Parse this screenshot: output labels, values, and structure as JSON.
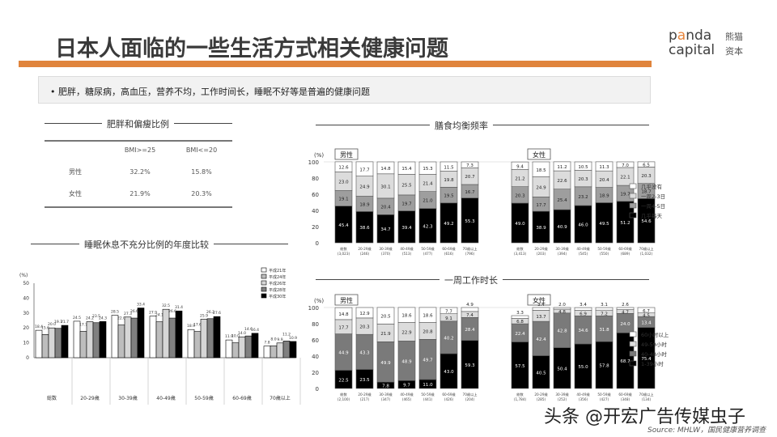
{
  "header": {
    "title": "日本人面临的一些生活方式相关健康问题",
    "logo_en_line1_pre": "p",
    "logo_en_line1_a": "a",
    "logo_en_line1_post": "nda",
    "logo_en_line2": "capital",
    "logo_cn_line1": "熊猫",
    "logo_cn_line2": "资本",
    "accent_color": "#e0843c"
  },
  "summary": {
    "bullet": "•  肥胖，糖尿病，高血压，营养不均，工作时间长，睡眠不好等是普遍的健康问题"
  },
  "obesity": {
    "title": "肥胖和偏瘦比例",
    "headers": [
      "",
      "BMI>=25",
      "BMI<=20"
    ],
    "rows": [
      {
        "label": "男性",
        "bmi25": "32.2%",
        "bmi20": "15.8%"
      },
      {
        "label": "女性",
        "bmi25": "21.9%",
        "bmi20": "20.3%"
      }
    ]
  },
  "sleep": {
    "title": "睡眠休息不充分比例的年度比较"
  },
  "diet": {
    "title": "膳食均衡频率"
  },
  "work": {
    "title": "一周工作时长"
  },
  "footer": {
    "watermark": "头条 @开宏广告传媒虫子",
    "source": "Source: MHLW，国民健康营养调查"
  },
  "chart_data": [
    {
      "type": "bar",
      "title": "睡眠休息不充分比例的年度比较",
      "ylabel": "(%)",
      "ylim": [
        0,
        50
      ],
      "yticks": [
        0,
        10,
        20,
        30,
        40,
        50
      ],
      "categories": [
        "総数",
        "20-29歳",
        "30-39歳",
        "40-49歳",
        "50-59歳",
        "60-69歳",
        "70歳以上"
      ],
      "series": [
        {
          "name": "平成21年",
          "color": "#ffffff",
          "values": [
            18.4,
            24.5,
            28.5,
            27.9,
            18.9,
            11.9,
            7.8
          ]
        },
        {
          "name": "平成24年",
          "color": "#bdbdbd",
          "values": [
            15.6,
            17.7,
            22.0,
            24.1,
            17.6,
            10.0,
            8.0
          ]
        },
        {
          "name": "平成26年",
          "color": "#d6d6d6",
          "values": [
            20.0,
            24.2,
            27.3,
            32.5,
            25.9,
            14.0,
            9.9
          ]
        },
        {
          "name": "平成28年",
          "color": "#808080",
          "values": [
            19.7,
            23.5,
            26.6,
            26.6,
            26.2,
            14.6,
            11.2
          ]
        },
        {
          "name": "平成30年",
          "color": "#000000",
          "values": [
            21.7,
            24.3,
            33.4,
            31.4,
            27.6,
            16.4,
            10.9
          ]
        }
      ],
      "legend_position": "top-right"
    },
    {
      "type": "bar",
      "stacked": true,
      "title": "膳食均衡频率",
      "ylabel": "(%)",
      "ylim": [
        0,
        100
      ],
      "yticks": [
        0,
        20,
        40,
        60,
        80,
        100
      ],
      "groups": [
        {
          "name": "男性",
          "categories": [
            "総数 (3,023)",
            "20-29歳 (246)",
            "30-39歳 (370)",
            "40-49歳 (513)",
            "50-59歳 (477)",
            "60-69歳 (616)",
            "70歳以上 (796)"
          ],
          "series": [
            {
              "name": "几乎每天",
              "values": [
                45.4,
                38.6,
                34.7,
                39.4,
                42.3,
                49.2,
                55.3
              ]
            },
            {
              "name": "一周4-5日",
              "values": [
                19.1,
                18.9,
                20.4,
                19.7,
                21.0,
                19.5,
                16.7
              ]
            },
            {
              "name": "一周2-3日",
              "values": [
                23.0,
                24.9,
                30.1,
                25.5,
                21.4,
                19.8,
                20.7
              ]
            },
            {
              "name": "几乎没有",
              "values": [
                12.6,
                17.7,
                14.8,
                15.4,
                15.3,
                11.5,
                7.3
              ]
            }
          ]
        },
        {
          "name": "女性",
          "categories": [
            "総数 (3,413)",
            "20-29歳 (203)",
            "30-39歳 (394)",
            "40-49歳 (545)",
            "50-59歳 (550)",
            "60-69歳 (689)",
            "70歳以上 (1,032)"
          ],
          "series": [
            {
              "name": "几乎每天",
              "values": [
                49.0,
                38.9,
                40.9,
                46.0,
                49.5,
                51.2,
                54.6
              ]
            },
            {
              "name": "一周4-5日",
              "values": [
                20.3,
                17.7,
                25.4,
                23.2,
                18.9,
                19.7,
                18.7
              ]
            },
            {
              "name": "一周2-3日",
              "values": [
                21.2,
                24.9,
                22.6,
                20.3,
                20.4,
                22.1,
                20.3
              ]
            },
            {
              "name": "几乎没有",
              "values": [
                9.4,
                18.5,
                11.2,
                10.5,
                11.3,
                7.0,
                6.5
              ]
            }
          ]
        }
      ],
      "legend": [
        "几乎没有",
        "一周2-3日",
        "一周4-5日",
        "几乎每天"
      ],
      "legend_position": "right"
    },
    {
      "type": "bar",
      "stacked": true,
      "title": "一周工作时长",
      "ylabel": "(%)",
      "ylim": [
        0,
        100
      ],
      "yticks": [
        0,
        20,
        40,
        60,
        80,
        100
      ],
      "groups": [
        {
          "name": "男性",
          "categories": [
            "総数 (2,100)",
            "20-29歳 (217)",
            "30-39歳 (347)",
            "40-49歳 (465)",
            "50-59歳 (441)",
            "60-69歳 (426)",
            "70歳以上 (204)"
          ],
          "series": [
            {
              "name": "1-39小时",
              "values": [
                22.5,
                23.5,
                7.8,
                9.7,
                11.0,
                43.0,
                59.3
              ]
            },
            {
              "name": "40-48小时",
              "values": [
                44.9,
                43.3,
                49.9,
                48.9,
                49.7,
                40.2,
                28.4
              ]
            },
            {
              "name": "49-59小时",
              "values": [
                17.7,
                20.3,
                21.9,
                22.9,
                20.8,
                9.1,
                7.4
              ]
            },
            {
              "name": "60小时以上",
              "values": [
                14.8,
                12.9,
                20.5,
                18.6,
                18.6,
                7.7,
                4.9
              ]
            }
          ]
        },
        {
          "name": "女性",
          "categories": [
            "総数 (1,784)",
            "20-29歳 (285)",
            "30-39歳 (252)",
            "40-49歳 (356)",
            "50-59歳 (427)",
            "60-69歳 (348)",
            "70歳以上 (134)"
          ],
          "series": [
            {
              "name": "1-39小时",
              "values": [
                57.5,
                40.5,
                50.4,
                55.0,
                57.8,
                68.7,
                75.4
              ]
            },
            {
              "name": "40-48小时",
              "values": [
                22.4,
                42.4,
                42.8,
                34.6,
                31.8,
                24.0,
                13.4
              ]
            },
            {
              "name": "49-59小时",
              "values": [
                6.8,
                13.7,
                4.8,
                6.9,
                7.2,
                4.7,
                4.5
              ]
            },
            {
              "name": "60小时以上",
              "values": [
                3.3,
                3.4,
                2.0,
                3.4,
                3.1,
                2.6,
                6.7
              ]
            }
          ]
        }
      ],
      "legend": [
        "60小时以上",
        "49-59小时",
        "40-48小时",
        "1-39小时"
      ],
      "legend_position": "right"
    }
  ]
}
